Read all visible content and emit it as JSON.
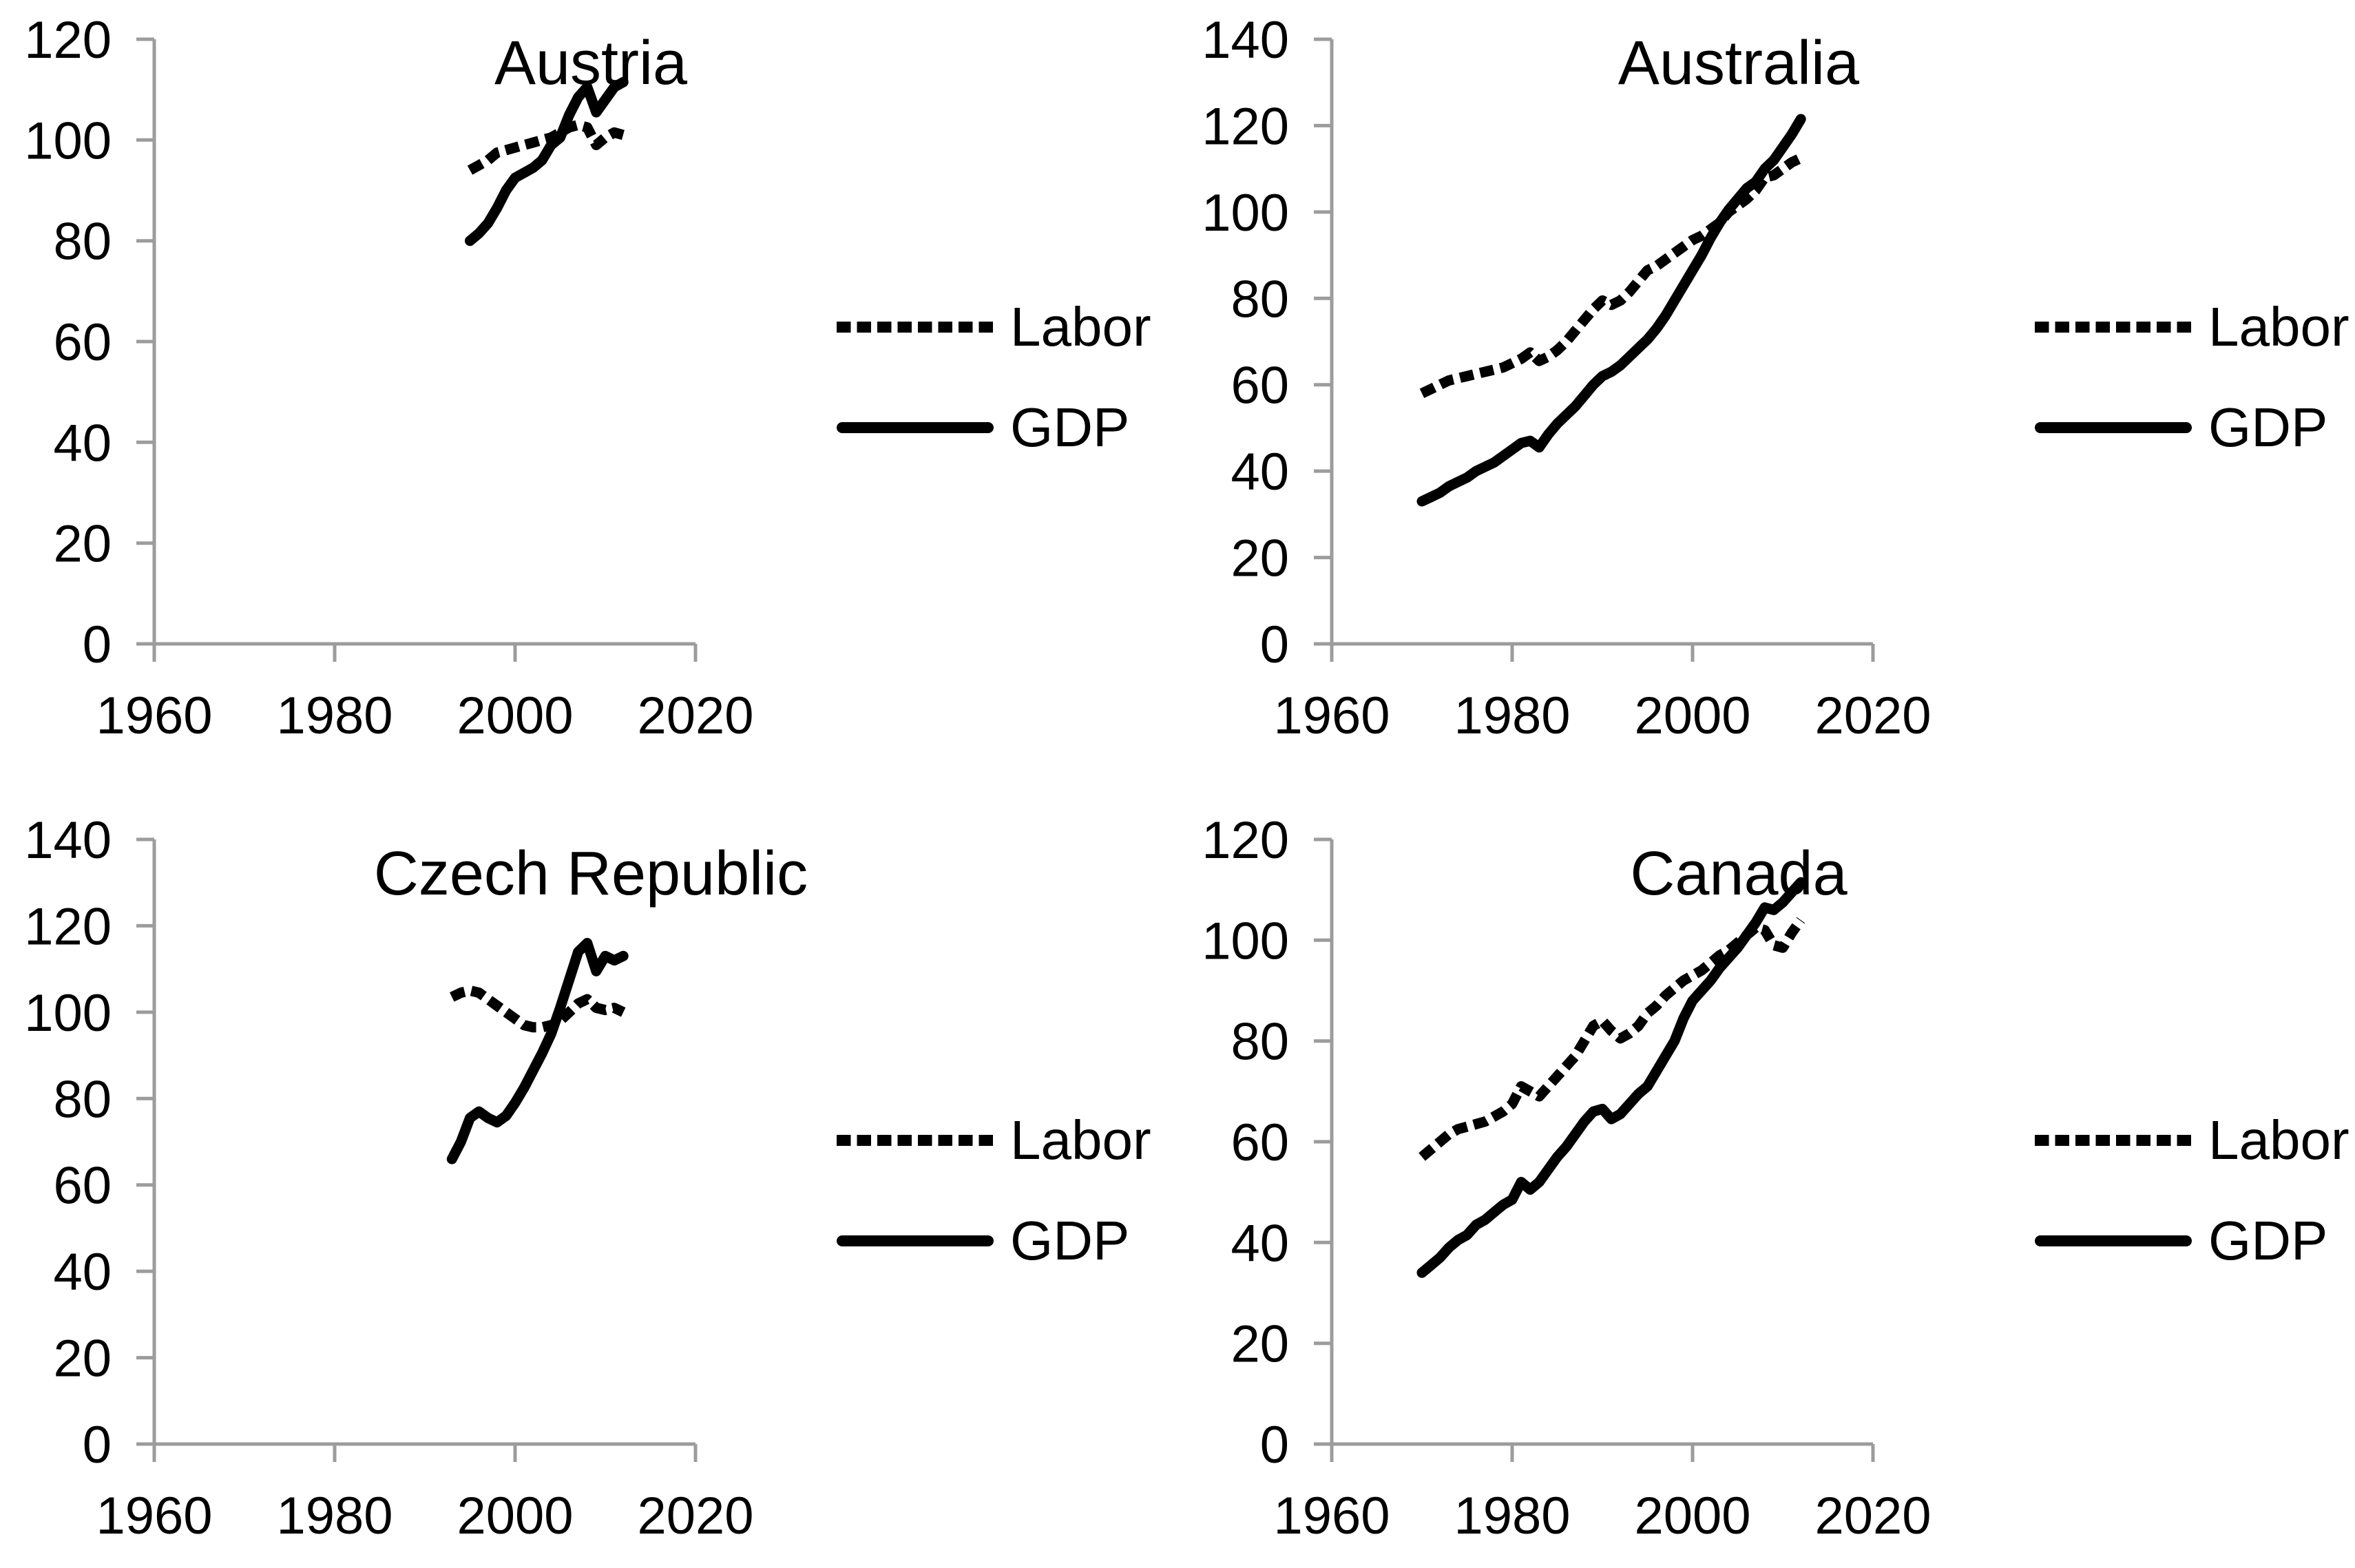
{
  "legend": {
    "labor_label": "Labor",
    "gdp_label": "GDP"
  },
  "chart_data": [
    {
      "type": "line",
      "title": "Austria",
      "xlabel": "",
      "ylabel": "",
      "xlim": [
        1960,
        2020
      ],
      "ylim": [
        0,
        120
      ],
      "xticks": [
        1960,
        1980,
        2000,
        2020
      ],
      "yticks": [
        0,
        20,
        40,
        60,
        80,
        100,
        120
      ],
      "grid": false,
      "legend_position": "right",
      "start_year": 1995,
      "series": [
        {
          "name": "Labor",
          "style": "dotted",
          "values": [
            94,
            95,
            96,
            97.5,
            98,
            98.5,
            99,
            99.5,
            100,
            100.5,
            101.5,
            102.5,
            103,
            102.5,
            99,
            100.5,
            101.5,
            101
          ]
        },
        {
          "name": "GDP",
          "style": "solid",
          "values": [
            80,
            81.5,
            83.5,
            86.5,
            90,
            92.5,
            93.5,
            94.5,
            96,
            99,
            100.5,
            105,
            108.5,
            110.5,
            105.5,
            108,
            110.5,
            111.5
          ]
        }
      ]
    },
    {
      "type": "line",
      "title": "Australia",
      "xlabel": "",
      "ylabel": "",
      "xlim": [
        1960,
        2020
      ],
      "ylim": [
        0,
        140
      ],
      "xticks": [
        1960,
        1980,
        2000,
        2020
      ],
      "yticks": [
        0,
        20,
        40,
        60,
        80,
        100,
        120,
        140
      ],
      "grid": false,
      "legend_position": "right",
      "start_year": 1970,
      "series": [
        {
          "name": "Labor",
          "style": "dotted",
          "values": [
            58,
            59,
            60,
            61,
            61.5,
            62,
            62.5,
            63,
            63.5,
            64,
            65,
            66,
            67.5,
            65.5,
            66.5,
            68,
            70,
            72.5,
            75,
            77.5,
            79.5,
            78.5,
            79.5,
            81.5,
            84,
            86.5,
            87.5,
            89,
            90.5,
            92,
            93.5,
            94.5,
            96,
            97.5,
            100,
            101.5,
            103,
            105,
            108,
            108.5,
            110,
            111.5,
            112.5
          ]
        },
        {
          "name": "GDP",
          "style": "solid",
          "values": [
            33,
            34,
            35,
            36.5,
            37.5,
            38.5,
            40,
            41,
            42,
            43.5,
            45,
            46.5,
            47,
            45.5,
            48.5,
            51,
            53,
            55,
            57.5,
            60,
            62,
            63,
            64.5,
            66.5,
            68.5,
            70.5,
            73,
            76,
            79.5,
            83,
            86.5,
            90,
            94,
            97.5,
            100.5,
            103,
            105.5,
            107,
            110,
            112,
            115,
            118,
            121.5
          ]
        }
      ]
    },
    {
      "type": "line",
      "title": "Czech Republic",
      "xlabel": "",
      "ylabel": "",
      "xlim": [
        1960,
        2020
      ],
      "ylim": [
        0,
        140
      ],
      "xticks": [
        1960,
        1980,
        2000,
        2020
      ],
      "yticks": [
        0,
        20,
        40,
        60,
        80,
        100,
        120,
        140
      ],
      "grid": false,
      "legend_position": "right",
      "start_year": 1993,
      "series": [
        {
          "name": "Labor",
          "style": "dotted",
          "values": [
            103.5,
            104.5,
            105,
            104.5,
            103,
            101.5,
            100,
            98.5,
            97,
            96.5,
            96.5,
            97,
            98,
            100,
            102,
            103,
            101,
            100.5,
            101,
            100
          ]
        },
        {
          "name": "GDP",
          "style": "solid",
          "values": [
            66,
            70,
            75.5,
            77,
            75.5,
            74.5,
            76,
            79,
            82.5,
            86.5,
            90.5,
            95,
            101,
            107.5,
            114,
            116,
            109.5,
            113,
            112,
            113
          ]
        }
      ]
    },
    {
      "type": "line",
      "title": "Canada",
      "xlabel": "",
      "ylabel": "",
      "xlim": [
        1960,
        2020
      ],
      "ylim": [
        0,
        120
      ],
      "xticks": [
        1960,
        1980,
        2000,
        2020
      ],
      "yticks": [
        0,
        20,
        40,
        60,
        80,
        100,
        120
      ],
      "grid": false,
      "legend_position": "right",
      "start_year": 1970,
      "series": [
        {
          "name": "Labor",
          "style": "dotted",
          "values": [
            57,
            58.5,
            60,
            61.5,
            62.5,
            63,
            63.5,
            64,
            65,
            66,
            67.5,
            71,
            70,
            69,
            71,
            73,
            75,
            77,
            80,
            83,
            84,
            82,
            80.5,
            81.5,
            83,
            85.5,
            87,
            89,
            90.5,
            92,
            93,
            94,
            95.5,
            97,
            98,
            99.5,
            101,
            102.5,
            102,
            99,
            98.5,
            101.5,
            104
          ]
        },
        {
          "name": "GDP",
          "style": "solid",
          "values": [
            34,
            35.5,
            37,
            39,
            40.5,
            41.5,
            43.5,
            44.5,
            46,
            47.5,
            48.5,
            52,
            50.5,
            52,
            54.5,
            57,
            59,
            61.5,
            64,
            66,
            66.5,
            64.5,
            65.5,
            67.5,
            69.5,
            71,
            74,
            77,
            80,
            84.5,
            88,
            90,
            92,
            94.5,
            96.5,
            98.5,
            101,
            103.5,
            106.5,
            106,
            107.5,
            109.5,
            111.5
          ]
        }
      ]
    }
  ]
}
